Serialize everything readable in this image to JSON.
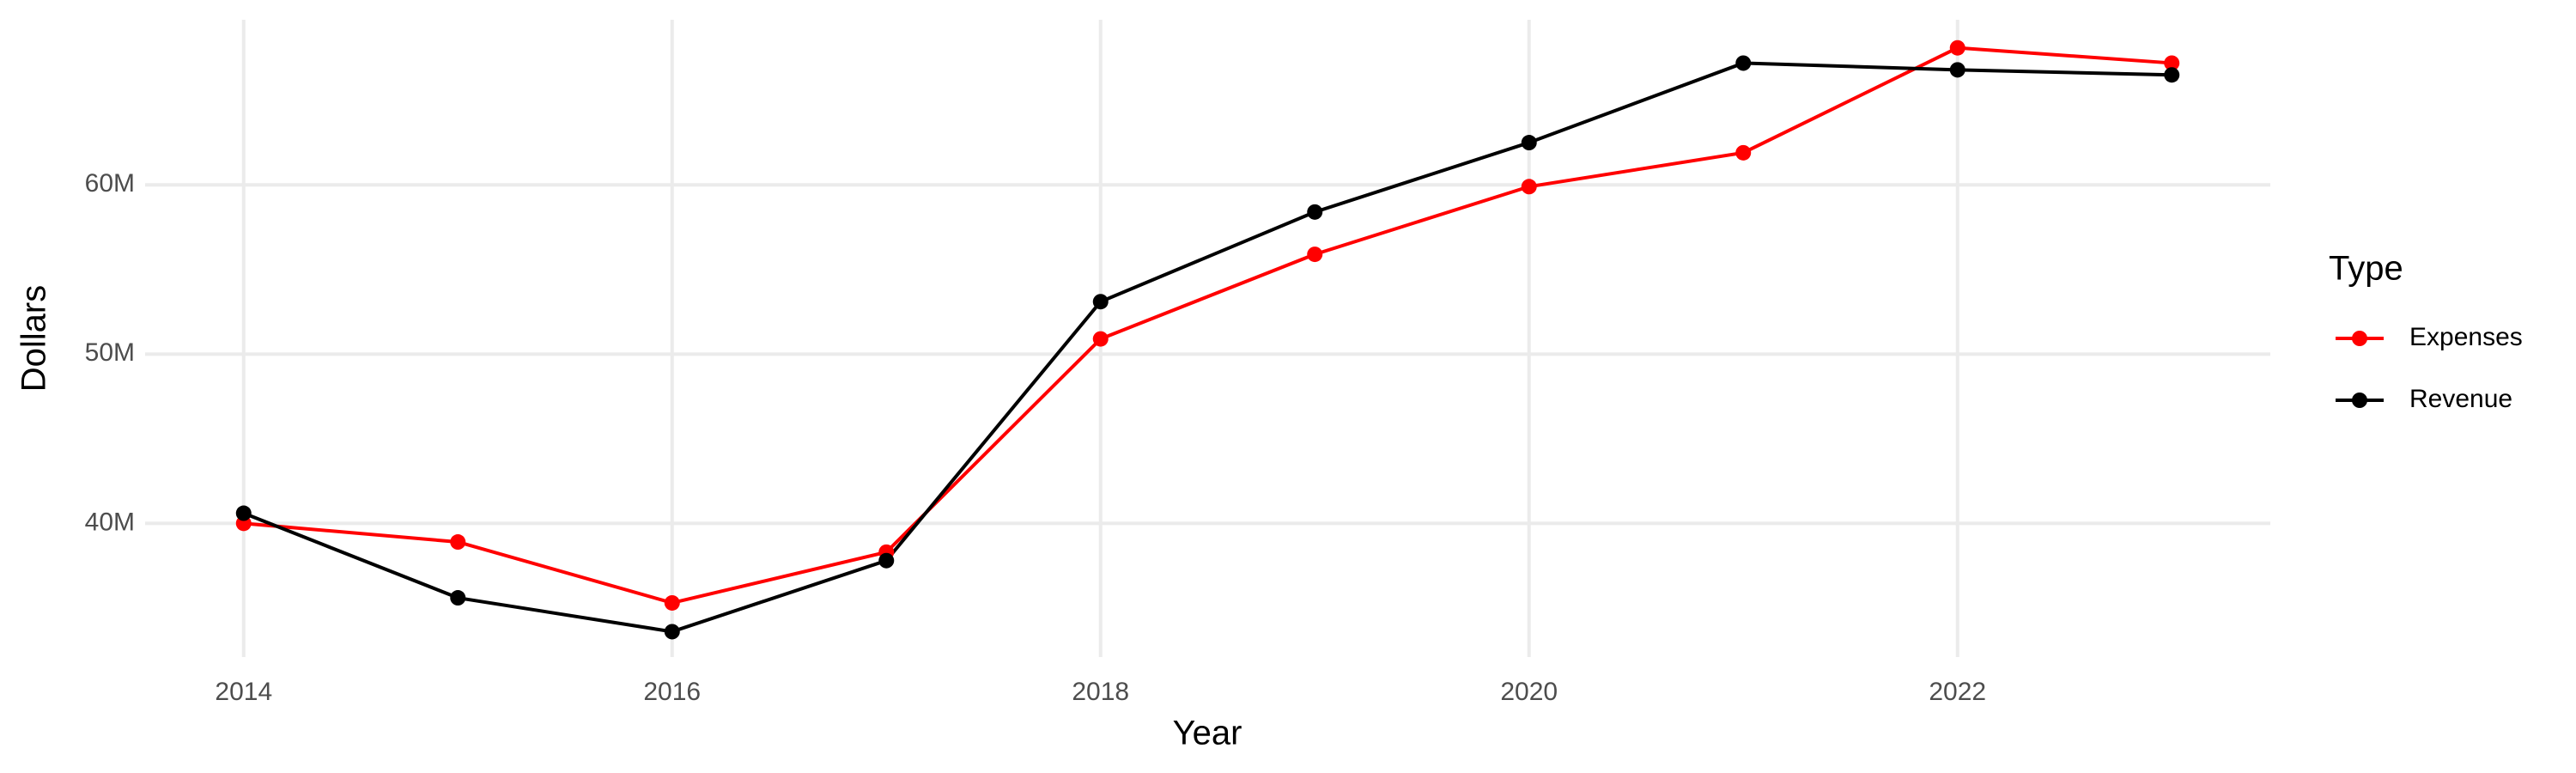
{
  "chart_data": {
    "type": "line",
    "x_label": "Year",
    "y_label": "Dollars",
    "legend_title": "Type",
    "x": [
      2014,
      2015,
      2016,
      2017,
      2018,
      2019,
      2020,
      2021,
      2022,
      2023
    ],
    "series": [
      {
        "name": "Expenses",
        "color": "#ff0000",
        "values": [
          40000000,
          38900000,
          35300000,
          38300000,
          50900000,
          55900000,
          59900000,
          61900000,
          68100000,
          67200000
        ]
      },
      {
        "name": "Revenue",
        "color": "#000000",
        "values": [
          40600000,
          35600000,
          33600000,
          37800000,
          53100000,
          58400000,
          62500000,
          67200000,
          66800000,
          66500000
        ]
      }
    ],
    "xlim": [
      2013.54,
      2023.46
    ],
    "xticks": [
      2014,
      2016,
      2018,
      2020,
      2022
    ],
    "ylim": [
      32100000,
      69760000
    ],
    "yticks": [
      {
        "value": 40000000,
        "label": "40M"
      },
      {
        "value": 50000000,
        "label": "50M"
      },
      {
        "value": 60000000,
        "label": "60M"
      }
    ],
    "grid": true,
    "legend": "right"
  }
}
